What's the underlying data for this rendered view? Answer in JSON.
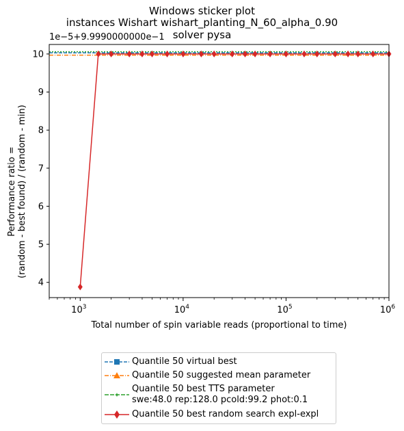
{
  "title": {
    "line1": "Windows sticker plot",
    "line2": "instances Wishart wishart_planting_N_60_alpha_0.90",
    "line3": "solver pysa"
  },
  "offset_label": "1e−5+9.9990000000e−1",
  "ylabel": {
    "line1": "Performance ratio =",
    "line2": "(random - best found) / (random - min)"
  },
  "xlabel": "Total number of spin variable reads (proportional to time)",
  "chart_data": {
    "type": "line",
    "xscale": "log",
    "xlim": [
      500,
      1000000
    ],
    "ylim": [
      3.6,
      10.25
    ],
    "y_offset_note": "values shown are (y - 0.9999) / 1e-5",
    "x_ticks": [
      {
        "value": 1000,
        "base": "10",
        "exp": "3"
      },
      {
        "value": 10000,
        "base": "10",
        "exp": "4"
      },
      {
        "value": 100000,
        "base": "10",
        "exp": "5"
      },
      {
        "value": 1000000,
        "base": "10",
        "exp": "6"
      }
    ],
    "y_ticks": [
      4,
      5,
      6,
      7,
      8,
      9,
      10
    ],
    "series": [
      {
        "name": "Quantile 50 virtual best",
        "color": "#1f77b4",
        "dash": "dashed",
        "marker": "square",
        "x": [
          500,
          1000000
        ],
        "y": [
          10.03,
          10.03
        ]
      },
      {
        "name": "Quantile 50 suggested mean parameter",
        "color": "#ff7f0e",
        "dash": "dashdot",
        "marker": "triangle",
        "x": [
          500,
          1000000
        ],
        "y": [
          9.97,
          9.97
        ]
      },
      {
        "name": "Quantile 50 best TTS parameter swe:48.0 rep:128.0 pcold:99.2 phot:0.1",
        "legend_lines": [
          "Quantile 50 best TTS parameter",
          "swe:48.0 rep:128.0 pcold:99.2 phot:0.1"
        ],
        "color": "#2ca02c",
        "dash": "dotted",
        "marker": "star",
        "x": [
          500,
          1000000
        ],
        "y": [
          10.06,
          10.06
        ]
      },
      {
        "name": "Quantile 50  best random search expl-expl",
        "color": "#d62728",
        "dash": "solid",
        "marker": "diamond",
        "x": [
          1000,
          1500,
          2000,
          3000,
          4000,
          5000,
          7000,
          10000,
          15000,
          20000,
          30000,
          40000,
          50000,
          70000,
          100000,
          150000,
          200000,
          300000,
          400000,
          500000,
          700000,
          1000000
        ],
        "y": [
          3.88,
          10,
          10,
          10,
          10,
          10,
          10,
          10,
          10,
          10,
          10,
          10,
          10,
          10,
          10,
          10,
          10,
          10,
          10,
          10,
          10,
          10
        ]
      }
    ]
  }
}
